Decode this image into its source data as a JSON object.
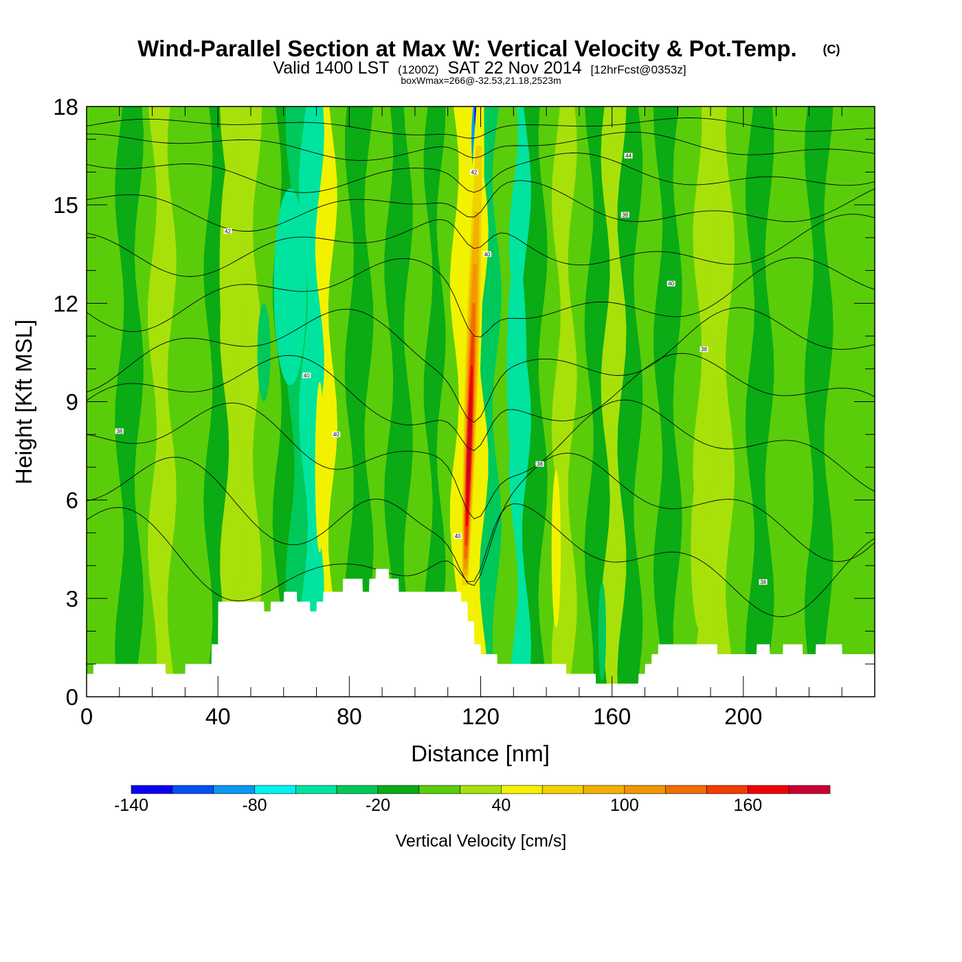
{
  "chart_data": {
    "type": "heatmap",
    "title": "Wind-Parallel Section at Max W: Vertical Velocity & Pot.Temp.",
    "title_mark": "(C)",
    "valid_prefix": "Valid 1400 LST",
    "valid_utc": "(1200Z)",
    "valid_date": "SAT 22 Nov 2014",
    "forecast": "[12hrFcst@0353z]",
    "subtitle": "boxWmax=266@-32.53,21.18,2523m",
    "xlabel": "Distance [nm]",
    "ylabel": "Height [Kft MSL]",
    "xlim": [
      0,
      240
    ],
    "ylim": [
      0,
      18
    ],
    "x_ticks": [
      0,
      40,
      80,
      120,
      160,
      200
    ],
    "x_ticks_labels": [
      "0",
      "40",
      "80",
      "120",
      "160",
      "200"
    ],
    "y_ticks": [
      0,
      3,
      6,
      9,
      12,
      15,
      18
    ],
    "y_ticks_labels": [
      "0",
      "3",
      "6",
      "9",
      "12",
      "15",
      "18"
    ],
    "colorbar": {
      "label": "Vertical Velocity [cm/s]",
      "levels": [
        -140,
        -120,
        -100,
        -80,
        -60,
        -40,
        -20,
        0,
        20,
        40,
        60,
        80,
        100,
        120,
        140,
        160,
        180,
        200
      ],
      "tick_values": [
        -140,
        -80,
        -20,
        40,
        100,
        160
      ],
      "tick_labels": [
        "-140",
        "-80",
        "-20",
        "40",
        "100",
        "160"
      ],
      "colors": [
        "#0a00f2",
        "#0050f2",
        "#0a96f2",
        "#00f2f2",
        "#00e4a0",
        "#00c85a",
        "#0aab14",
        "#5acd0a",
        "#a8e10a",
        "#f2f200",
        "#f2d200",
        "#f2b100",
        "#f29600",
        "#f26e00",
        "#f23c00",
        "#f20000",
        "#c80032"
      ]
    },
    "background_w": 5,
    "updraft_core": {
      "x": [
        114,
        114.5,
        115,
        115.5,
        116,
        116.5,
        117,
        117.5,
        118,
        118.5,
        119
      ],
      "comment_none": "",
      "base_kft": 3.2,
      "top_kft": 18,
      "peak_kft": 7.5,
      "peak_w": 190
    },
    "w_bands": [
      {
        "x": 0,
        "w": 12
      },
      {
        "x": 6,
        "w": 5
      },
      {
        "x": 10,
        "w": -8
      },
      {
        "x": 16,
        "w": 14
      },
      {
        "x": 20,
        "w": 28
      },
      {
        "x": 26,
        "w": 8
      },
      {
        "x": 32,
        "w": 18
      },
      {
        "x": 37,
        "w": -6
      },
      {
        "x": 42,
        "w": 22
      },
      {
        "x": 47,
        "w": 30
      },
      {
        "x": 52,
        "w": 4
      },
      {
        "x": 58,
        "w": -20
      },
      {
        "x": 62,
        "w": -35
      },
      {
        "x": 66,
        "w": -48
      },
      {
        "x": 71,
        "w": 46
      },
      {
        "x": 75,
        "w": 12
      },
      {
        "x": 80,
        "w": -8
      },
      {
        "x": 86,
        "w": 16
      },
      {
        "x": 92,
        "w": -5
      },
      {
        "x": 98,
        "w": 8
      },
      {
        "x": 104,
        "w": -10
      },
      {
        "x": 108,
        "w": 18
      },
      {
        "x": 112,
        "w": 40
      },
      {
        "x": 121,
        "w": -25
      },
      {
        "x": 125,
        "w": 6
      },
      {
        "x": 130,
        "w": -45
      },
      {
        "x": 134,
        "w": -15
      },
      {
        "x": 139,
        "w": 12
      },
      {
        "x": 143,
        "w": 38
      },
      {
        "x": 148,
        "w": 8
      },
      {
        "x": 153,
        "w": -12
      },
      {
        "x": 158,
        "w": 20
      },
      {
        "x": 163,
        "w": -4
      },
      {
        "x": 168,
        "w": 14
      },
      {
        "x": 174,
        "w": -10
      },
      {
        "x": 180,
        "w": 6
      },
      {
        "x": 186,
        "w": 24
      },
      {
        "x": 191,
        "w": 28
      },
      {
        "x": 196,
        "w": 2
      },
      {
        "x": 202,
        "w": -12
      },
      {
        "x": 208,
        "w": 10
      },
      {
        "x": 214,
        "w": 4
      },
      {
        "x": 220,
        "w": -14
      },
      {
        "x": 226,
        "w": 8
      },
      {
        "x": 232,
        "w": 16
      },
      {
        "x": 240,
        "w": 2
      }
    ],
    "w_blobs": [
      {
        "x": 62,
        "y": 12.5,
        "rx": 5,
        "ry": 3,
        "w": -50
      },
      {
        "x": 131,
        "y": 10,
        "rx": 3,
        "ry": 3.5,
        "w": -52
      },
      {
        "x": 119,
        "y": 17,
        "rx": 1.8,
        "ry": 1.4,
        "w": -95
      },
      {
        "x": 119,
        "y": 17.7,
        "rx": 0.9,
        "ry": 0.6,
        "w": -130
      },
      {
        "x": 71,
        "y": 7,
        "rx": 1.4,
        "ry": 2.6,
        "w": 48
      },
      {
        "x": 143,
        "y": 4.5,
        "rx": 1.4,
        "ry": 2.4,
        "w": 42
      },
      {
        "x": 187,
        "y": 4.5,
        "rx": 3,
        "ry": 2.5,
        "w": 28
      },
      {
        "x": 44,
        "y": 13,
        "rx": 3.5,
        "ry": 3.5,
        "w": 28
      },
      {
        "x": 157,
        "y": 2,
        "rx": 1.2,
        "ry": 1.5,
        "w": -30
      },
      {
        "x": 54,
        "y": 10.5,
        "rx": 2,
        "ry": 1.5,
        "w": -32
      }
    ],
    "terrain_kft": {
      "x": [
        0,
        2,
        2.1,
        24,
        24.1,
        30,
        30.1,
        38,
        38.1,
        40,
        40.1,
        41.5,
        41.5,
        54,
        54.1,
        56,
        56.1,
        60,
        60.1,
        64,
        64.1,
        68,
        68.1,
        70,
        70.1,
        72,
        72.1,
        78,
        78.1,
        84,
        84.1,
        86,
        86.1,
        88,
        88.1,
        92,
        92.1,
        95,
        95.1,
        114,
        114.1,
        116,
        116.1,
        118,
        118.1,
        120,
        120.1,
        125,
        125.1,
        146,
        146.1,
        155,
        155.1,
        168,
        168.1,
        170,
        170.1,
        172,
        172.1,
        174,
        174.1,
        176,
        176.1,
        192,
        192.1,
        204,
        204.1,
        208,
        208.1,
        212,
        212.1,
        218,
        218.1,
        222,
        222.1,
        230,
        230.1,
        240
      ],
      "y": [
        0.7,
        0.7,
        1.0,
        1.0,
        0.7,
        0.7,
        1.0,
        1.0,
        1.6,
        1.6,
        2.9,
        2.9,
        2.9,
        2.9,
        2.6,
        2.6,
        2.9,
        2.9,
        3.2,
        3.2,
        2.9,
        2.9,
        2.6,
        2.6,
        2.9,
        2.9,
        3.2,
        3.2,
        3.6,
        3.6,
        3.2,
        3.2,
        3.6,
        3.6,
        3.9,
        3.9,
        3.6,
        3.6,
        3.2,
        3.2,
        2.9,
        2.9,
        2.3,
        2.3,
        1.6,
        1.6,
        1.3,
        1.3,
        1.0,
        1.0,
        0.7,
        0.7,
        0.4,
        0.4,
        0.7,
        0.7,
        1.0,
        1.0,
        1.3,
        1.3,
        1.6,
        1.6,
        1.6,
        1.6,
        1.3,
        1.3,
        1.6,
        1.6,
        1.3,
        1.3,
        1.6,
        1.6,
        1.3,
        1.3,
        1.6,
        1.6,
        1.3,
        1.3,
        1.6,
        1.6
      ]
    },
    "theta_isolines": [
      {
        "y0": 17.4,
        "amp": 0.3
      },
      {
        "y0": 16.8,
        "amp": 0.5
      },
      {
        "y0": 16.0,
        "amp": 0.7
      },
      {
        "y0": 15.0,
        "amp": 0.9
      },
      {
        "y0": 13.8,
        "amp": 1.1
      },
      {
        "y0": 12.3,
        "amp": 1.3
      },
      {
        "y0": 10.6,
        "amp": 1.5
      },
      {
        "y0": 9.2,
        "amp": 1.5
      },
      {
        "y0": 7.6,
        "amp": 1.7
      },
      {
        "y0": 5.8,
        "amp": 1.9
      },
      {
        "y0": 4.2,
        "amp": 2.0
      }
    ],
    "isoline_labels": [
      {
        "x": 43,
        "y": 14.2,
        "text": "42"
      },
      {
        "x": 67,
        "y": 9.8,
        "text": "40"
      },
      {
        "x": 10,
        "y": 8.1,
        "text": "38"
      },
      {
        "x": 76,
        "y": 8.0,
        "text": "40"
      },
      {
        "x": 113,
        "y": 4.9,
        "text": "40"
      },
      {
        "x": 118,
        "y": 16.0,
        "text": "42"
      },
      {
        "x": 122,
        "y": 13.5,
        "text": "40"
      },
      {
        "x": 165,
        "y": 16.5,
        "text": "44"
      },
      {
        "x": 164,
        "y": 14.7,
        "text": "38"
      },
      {
        "x": 178,
        "y": 12.6,
        "text": "40"
      },
      {
        "x": 188,
        "y": 10.6,
        "text": "38"
      },
      {
        "x": 138,
        "y": 7.1,
        "text": "38"
      },
      {
        "x": 206,
        "y": 3.5,
        "text": "38"
      }
    ]
  }
}
